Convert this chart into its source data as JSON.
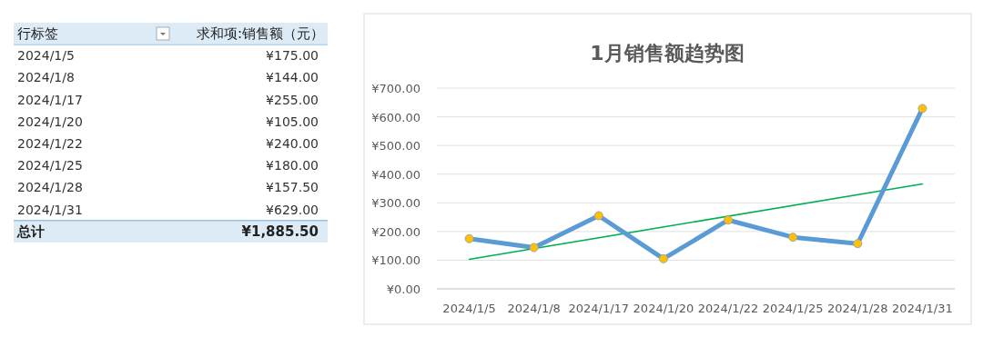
{
  "chart_data": [
    {
      "type": "other",
      "annotations": [
        "行标签",
        "求和项:销售额（元）",
        "2024/1/5",
        "¥175.00",
        "2024/1/8",
        "¥144.00",
        "2024/1/17",
        "¥255.00",
        "2024/1/20",
        "¥105.00",
        "2024/1/22",
        "¥240.00",
        "2024/1/25",
        "¥180.00",
        "2024/1/28",
        "¥157.50",
        "2024/1/31",
        "¥629.00",
        "总计",
        "¥1,885.50"
      ]
    },
    {
      "type": "line",
      "title": "1月销售额趋势图",
      "categories": [
        "2024/1/5",
        "2024/1/8",
        "2024/1/17",
        "2024/1/20",
        "2024/1/22",
        "2024/1/25",
        "2024/1/28",
        "2024/1/31"
      ],
      "series": [
        {
          "color": "#5b9bd5",
          "values": [
            175,
            144,
            255,
            105,
            240,
            180,
            157.5,
            629
          ],
          "marker": "circle"
        },
        {
          "type": "line",
          "color": "#00b050",
          "x": [
            "2024/1/5",
            "2024/1/31"
          ],
          "values": [
            103,
            366
          ],
          "marker": "none"
        }
      ],
      "ylim": [
        0,
        700
      ],
      "yticks": [
        {
          "value": 0,
          "label": "¥0.00"
        },
        {
          "value": 100,
          "label": "¥100.00"
        },
        {
          "value": 200,
          "label": "¥200.00"
        },
        {
          "value": 300,
          "label": "¥300.00"
        },
        {
          "value": 400,
          "label": "¥400.00"
        },
        {
          "value": 500,
          "label": "¥500.00"
        },
        {
          "value": 600,
          "label": "¥600.00"
        },
        {
          "value": 700,
          "label": "¥700.00"
        }
      ],
      "grid": "y"
    }
  ]
}
